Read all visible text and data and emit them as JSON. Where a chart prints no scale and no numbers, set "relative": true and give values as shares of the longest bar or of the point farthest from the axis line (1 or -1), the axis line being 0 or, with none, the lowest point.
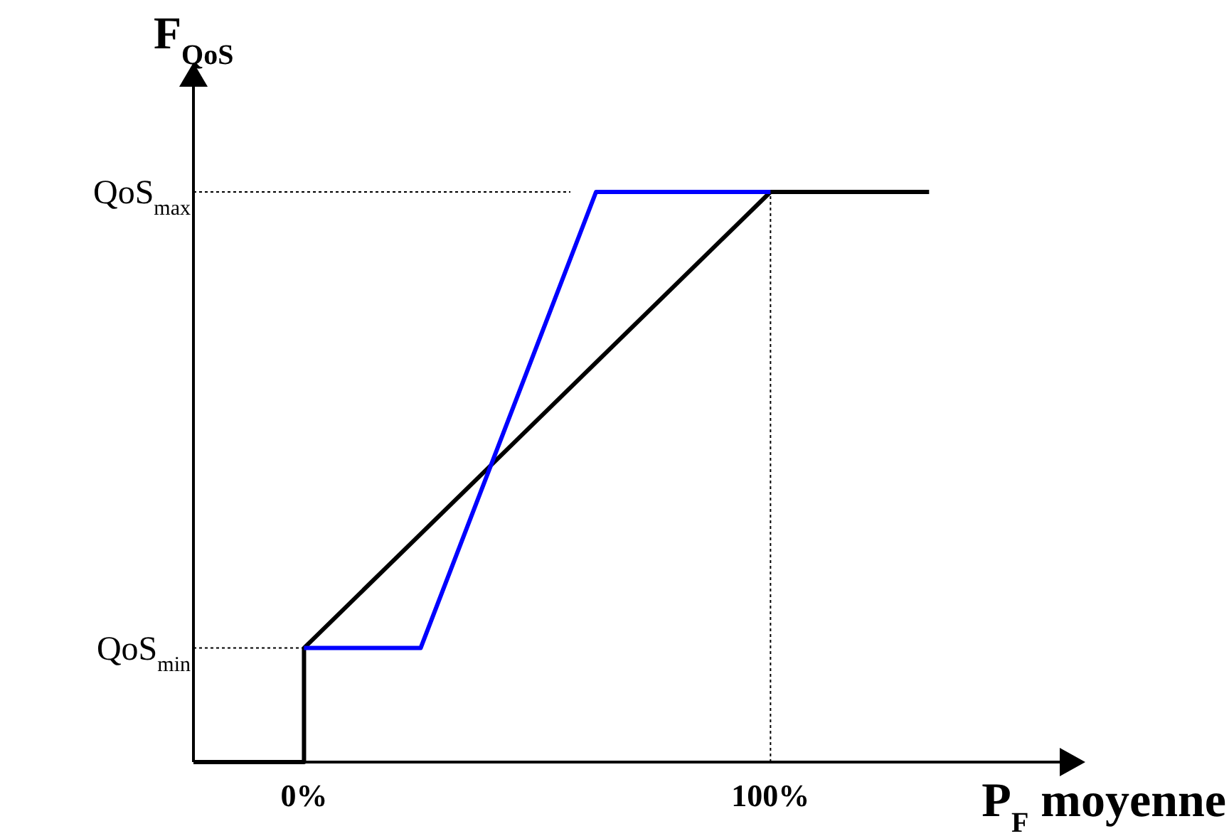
{
  "chart_data": {
    "type": "line",
    "relative": true,
    "xlabel": "P$_{F}$ moyenne",
    "ylabel": "F$_{QoS}$",
    "xlim": [
      -23.7,
      162
    ],
    "xticks": [
      {
        "value": 0,
        "label": "0%"
      },
      {
        "value": 100,
        "label": "100%"
      }
    ],
    "series": [
      {
        "color": "#000000",
        "x": [
          -23.7,
          0,
          0,
          100,
          134
        ],
        "values": [
          0,
          0,
          0.2,
          1,
          1
        ]
      },
      {
        "color": "#0000ff",
        "x": [
          0,
          25,
          62.6,
          100
        ],
        "values": [
          0.2,
          0.2,
          1,
          1
        ]
      }
    ],
    "ref_lines": [
      {
        "axis": "y",
        "value": 1,
        "label": "QoS$_{max}$",
        "line_style": "dotted"
      },
      {
        "axis": "y",
        "value": 0.2,
        "label": "QoS$_{min}$",
        "line_style": "dotted"
      },
      {
        "axis": "x",
        "value": 100,
        "line_style": "dotted"
      }
    ],
    "line_style": "solid"
  }
}
